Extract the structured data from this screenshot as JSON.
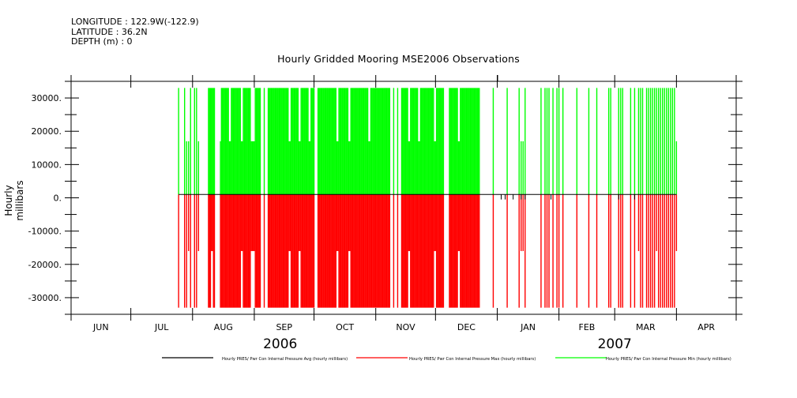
{
  "header": {
    "longitude": "LONGITUDE : 122.9W(-122.9)",
    "latitude": "LATITUDE : 36.2N",
    "depth": "DEPTH (m) : 0"
  },
  "colors": {
    "avg": "#000000",
    "max": "#ff0000",
    "min": "#00ff00",
    "axis": "#000000"
  },
  "chart_data": {
    "type": "bar",
    "title": "Hourly Gridded Mooring MSE2006 Observations",
    "xlabel": "",
    "ylabel": "Hourly millibars",
    "ylim": [
      -35000,
      35000
    ],
    "yticks": [
      30000,
      20000,
      10000,
      0,
      -10000,
      -20000,
      -30000
    ],
    "ytick_labels": [
      "30000.",
      "20000.",
      "10000.",
      "0.",
      "-10000.",
      "-20000.",
      "-30000."
    ],
    "month_labels": [
      "JUN",
      "JUL",
      "AUG",
      "SEP",
      "OCT",
      "NOV",
      "DEC",
      "JAN",
      "FEB",
      "MAR",
      "APR"
    ],
    "year_labels": [
      "2006",
      "2007"
    ],
    "legend_placement": "bottom",
    "series": [
      {
        "name": "Hourly PRES/ Pwr Con Internal Pressure Avg (hourly millibars)",
        "color": "#000000",
        "baseline": 1000,
        "typical_value": 1000
      },
      {
        "name": "Hourly PRES/ Pwr Con Internal Pressure Max (hourly millibars)",
        "color": "#ff0000",
        "baseline": 1000,
        "typical_value": -33000,
        "alt_value": -16000
      },
      {
        "name": "Hourly PRES/ Pwr Con Internal Pressure Min (hourly millibars)",
        "color": "#00ff00",
        "baseline": 1000,
        "typical_value": 33000,
        "alt_value": 17000
      }
    ],
    "data_days": {
      "first": 54,
      "last": 304,
      "dense": [
        [
          69,
          72
        ],
        [
          75,
          95
        ],
        [
          99,
          122
        ],
        [
          124,
          160
        ],
        [
          166,
          187
        ],
        [
          190,
          205
        ]
      ],
      "sparse": [
        54,
        57,
        58,
        59,
        60,
        62,
        63,
        64,
        97,
        162,
        164,
        212,
        219,
        225,
        226,
        227,
        228,
        236,
        238,
        239,
        240,
        242,
        244,
        245,
        247,
        254,
        260,
        264,
        270,
        271,
        275,
        276,
        277,
        281,
        283,
        285,
        286,
        287,
        289,
        290,
        291,
        292,
        293,
        294,
        295,
        296,
        297,
        298,
        299,
        300,
        301,
        302,
        303,
        304
      ],
      "dense_step": 0.5,
      "half_min_days": [
        58,
        59,
        64,
        75,
        80,
        86,
        91,
        92,
        110,
        115,
        120,
        134,
        140,
        150,
        161,
        170,
        175,
        183,
        195,
        226,
        227,
        304
      ],
      "half_max_days": [
        59,
        64,
        71,
        86,
        91,
        92,
        110,
        115,
        134,
        140,
        161,
        170,
        183,
        195,
        226,
        227,
        285,
        294,
        304
      ]
    }
  }
}
